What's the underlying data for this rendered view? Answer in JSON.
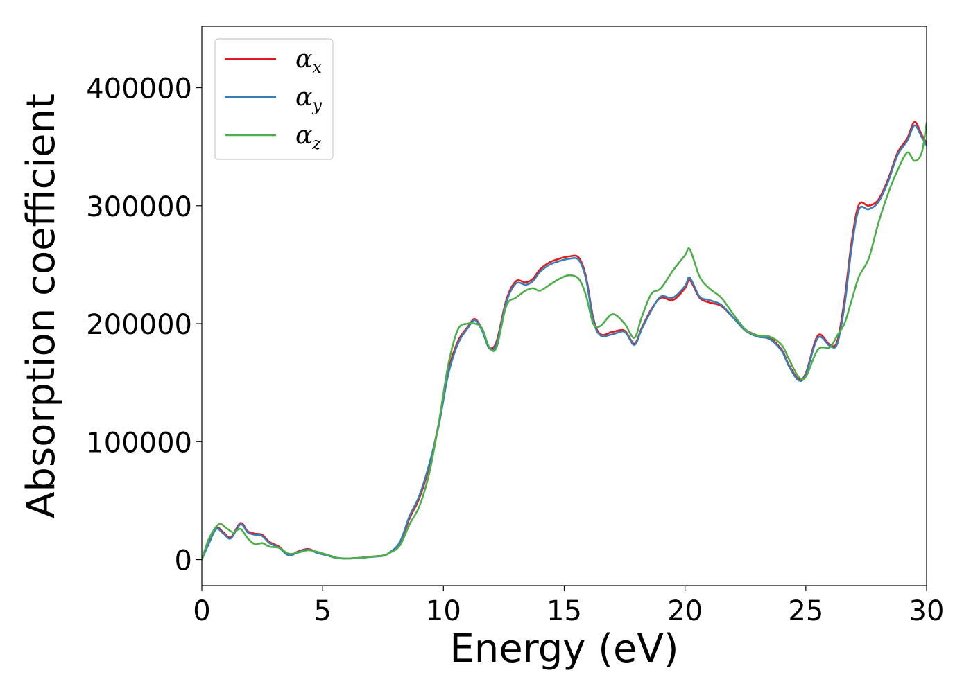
{
  "chart_data": {
    "type": "line",
    "xlabel": "Energy (eV)",
    "ylabel": "Absorption coefficient",
    "xlim": [
      0,
      30
    ],
    "ylim": [
      -22000,
      452000
    ],
    "xticks": [
      0,
      5,
      10,
      15,
      20,
      25,
      30
    ],
    "xtick_labels": [
      "0",
      "5",
      "10",
      "15",
      "20",
      "25",
      "30"
    ],
    "yticks": [
      0,
      100000,
      200000,
      300000,
      400000
    ],
    "ytick_labels": [
      "0",
      "100000",
      "200000",
      "300000",
      "400000"
    ],
    "grid": false,
    "legend_position": "top-left",
    "series": [
      {
        "name": "α_x",
        "legend_symbol": "α",
        "legend_subscript": "x",
        "color": "#e41a1c",
        "x": [
          0,
          0.3,
          0.6,
          0.9,
          1.2,
          1.6,
          1.9,
          2.2,
          2.5,
          2.8,
          3.2,
          3.6,
          4.0,
          4.4,
          4.8,
          5.2,
          5.6,
          6.0,
          6.5,
          7.0,
          7.5,
          7.8,
          8.2,
          8.6,
          9.0,
          9.4,
          9.8,
          10.2,
          10.6,
          11.0,
          11.3,
          11.6,
          11.9,
          12.2,
          12.6,
          13.0,
          13.4,
          13.7,
          14.0,
          14.4,
          14.8,
          15.2,
          15.6,
          15.9,
          16.2,
          16.5,
          17.0,
          17.5,
          17.9,
          18.2,
          18.6,
          19.0,
          19.5,
          20.0,
          20.2,
          20.6,
          21.0,
          21.5,
          22.0,
          22.5,
          23.0,
          23.5,
          24.0,
          24.3,
          24.7,
          25.0,
          25.5,
          26.0,
          26.3,
          26.6,
          26.9,
          27.2,
          27.6,
          28.0,
          28.4,
          28.8,
          29.2,
          29.5,
          29.8,
          30.0
        ],
        "y": [
          0,
          15000,
          27000,
          23000,
          19000,
          31000,
          24000,
          22000,
          21000,
          15000,
          11000,
          4000,
          7000,
          9000,
          6000,
          4000,
          1500,
          1000,
          1500,
          2500,
          3500,
          6000,
          14000,
          35000,
          52000,
          78000,
          115000,
          160000,
          185000,
          197000,
          204000,
          195000,
          180000,
          185000,
          220000,
          236000,
          235000,
          238000,
          246000,
          252000,
          255000,
          257000,
          256000,
          240000,
          205000,
          191000,
          193000,
          194000,
          183000,
          196000,
          212000,
          222000,
          220000,
          230000,
          237000,
          222000,
          218000,
          215000,
          205000,
          195000,
          190000,
          188000,
          178000,
          165000,
          153000,
          158000,
          190000,
          182000,
          185000,
          220000,
          270000,
          301000,
          300000,
          305000,
          322000,
          345000,
          357000,
          371000,
          360000,
          353000
        ]
      },
      {
        "name": "α_y",
        "legend_symbol": "α",
        "legend_subscript": "y",
        "color": "#377eb8",
        "x": [
          0,
          0.3,
          0.6,
          0.9,
          1.2,
          1.6,
          1.9,
          2.2,
          2.5,
          2.8,
          3.2,
          3.6,
          4.0,
          4.4,
          4.8,
          5.2,
          5.6,
          6.0,
          6.5,
          7.0,
          7.5,
          7.8,
          8.2,
          8.6,
          9.0,
          9.4,
          9.8,
          10.2,
          10.6,
          11.0,
          11.3,
          11.6,
          11.9,
          12.2,
          12.6,
          13.0,
          13.4,
          13.7,
          14.0,
          14.4,
          14.8,
          15.2,
          15.6,
          15.9,
          16.2,
          16.5,
          17.0,
          17.5,
          17.9,
          18.2,
          18.6,
          19.0,
          19.5,
          20.0,
          20.2,
          20.6,
          21.0,
          21.5,
          22.0,
          22.5,
          23.0,
          23.5,
          24.0,
          24.3,
          24.7,
          25.0,
          25.5,
          26.0,
          26.3,
          26.6,
          26.9,
          27.2,
          27.6,
          28.0,
          28.4,
          28.8,
          29.2,
          29.5,
          29.8,
          30.0
        ],
        "y": [
          0,
          14000,
          26000,
          22000,
          18000,
          30000,
          23000,
          21000,
          20000,
          14000,
          10000,
          3500,
          6500,
          8500,
          5500,
          3500,
          1200,
          900,
          1300,
          2300,
          3300,
          6500,
          15000,
          37000,
          54000,
          80000,
          113000,
          157000,
          183000,
          196000,
          203000,
          194000,
          179000,
          183000,
          218000,
          234000,
          233000,
          236000,
          244000,
          250000,
          253000,
          255000,
          254000,
          238000,
          203000,
          190000,
          191000,
          193000,
          182000,
          195000,
          211000,
          223000,
          222000,
          232000,
          239000,
          223000,
          220000,
          216000,
          205000,
          194000,
          189000,
          187000,
          177000,
          164000,
          152000,
          157000,
          188000,
          181000,
          183000,
          215000,
          265000,
          297000,
          297000,
          303000,
          320000,
          343000,
          355000,
          368000,
          358000,
          351000
        ]
      },
      {
        "name": "α_z",
        "legend_symbol": "α",
        "legend_subscript": "z",
        "color": "#4daf4a",
        "x": [
          0,
          0.3,
          0.7,
          1.0,
          1.3,
          1.6,
          1.9,
          2.2,
          2.5,
          2.8,
          3.2,
          3.6,
          4.0,
          4.4,
          4.8,
          5.2,
          5.6,
          6.0,
          6.5,
          7.0,
          7.5,
          7.8,
          8.2,
          8.6,
          9.0,
          9.4,
          9.8,
          10.2,
          10.6,
          11.0,
          11.3,
          11.6,
          11.9,
          12.2,
          12.6,
          13.0,
          13.4,
          13.7,
          14.0,
          14.4,
          14.8,
          15.2,
          15.6,
          15.9,
          16.2,
          16.5,
          17.0,
          17.5,
          17.9,
          18.2,
          18.6,
          19.0,
          19.5,
          20.0,
          20.2,
          20.6,
          21.0,
          21.5,
          22.0,
          22.5,
          23.0,
          23.5,
          24.0,
          24.3,
          24.7,
          25.0,
          25.5,
          26.0,
          26.3,
          26.6,
          26.9,
          27.2,
          27.6,
          28.0,
          28.4,
          28.8,
          29.2,
          29.5,
          29.8,
          30.0
        ],
        "y": [
          0,
          18000,
          30000,
          27000,
          23000,
          26000,
          18000,
          13000,
          14000,
          11000,
          10000,
          5000,
          6000,
          8000,
          6500,
          4000,
          1500,
          1000,
          1500,
          2500,
          3500,
          6000,
          12000,
          30000,
          45000,
          72000,
          115000,
          165000,
          195000,
          200000,
          200000,
          196000,
          180000,
          180000,
          215000,
          222000,
          228000,
          230000,
          228000,
          233000,
          238000,
          241000,
          238000,
          224000,
          200000,
          198000,
          208000,
          200000,
          188000,
          205000,
          225000,
          230000,
          245000,
          258000,
          263000,
          240000,
          230000,
          222000,
          208000,
          195000,
          190000,
          189000,
          182000,
          170000,
          155000,
          155000,
          178000,
          180000,
          190000,
          200000,
          220000,
          240000,
          255000,
          285000,
          310000,
          330000,
          345000,
          338000,
          345000,
          370000
        ]
      }
    ]
  }
}
